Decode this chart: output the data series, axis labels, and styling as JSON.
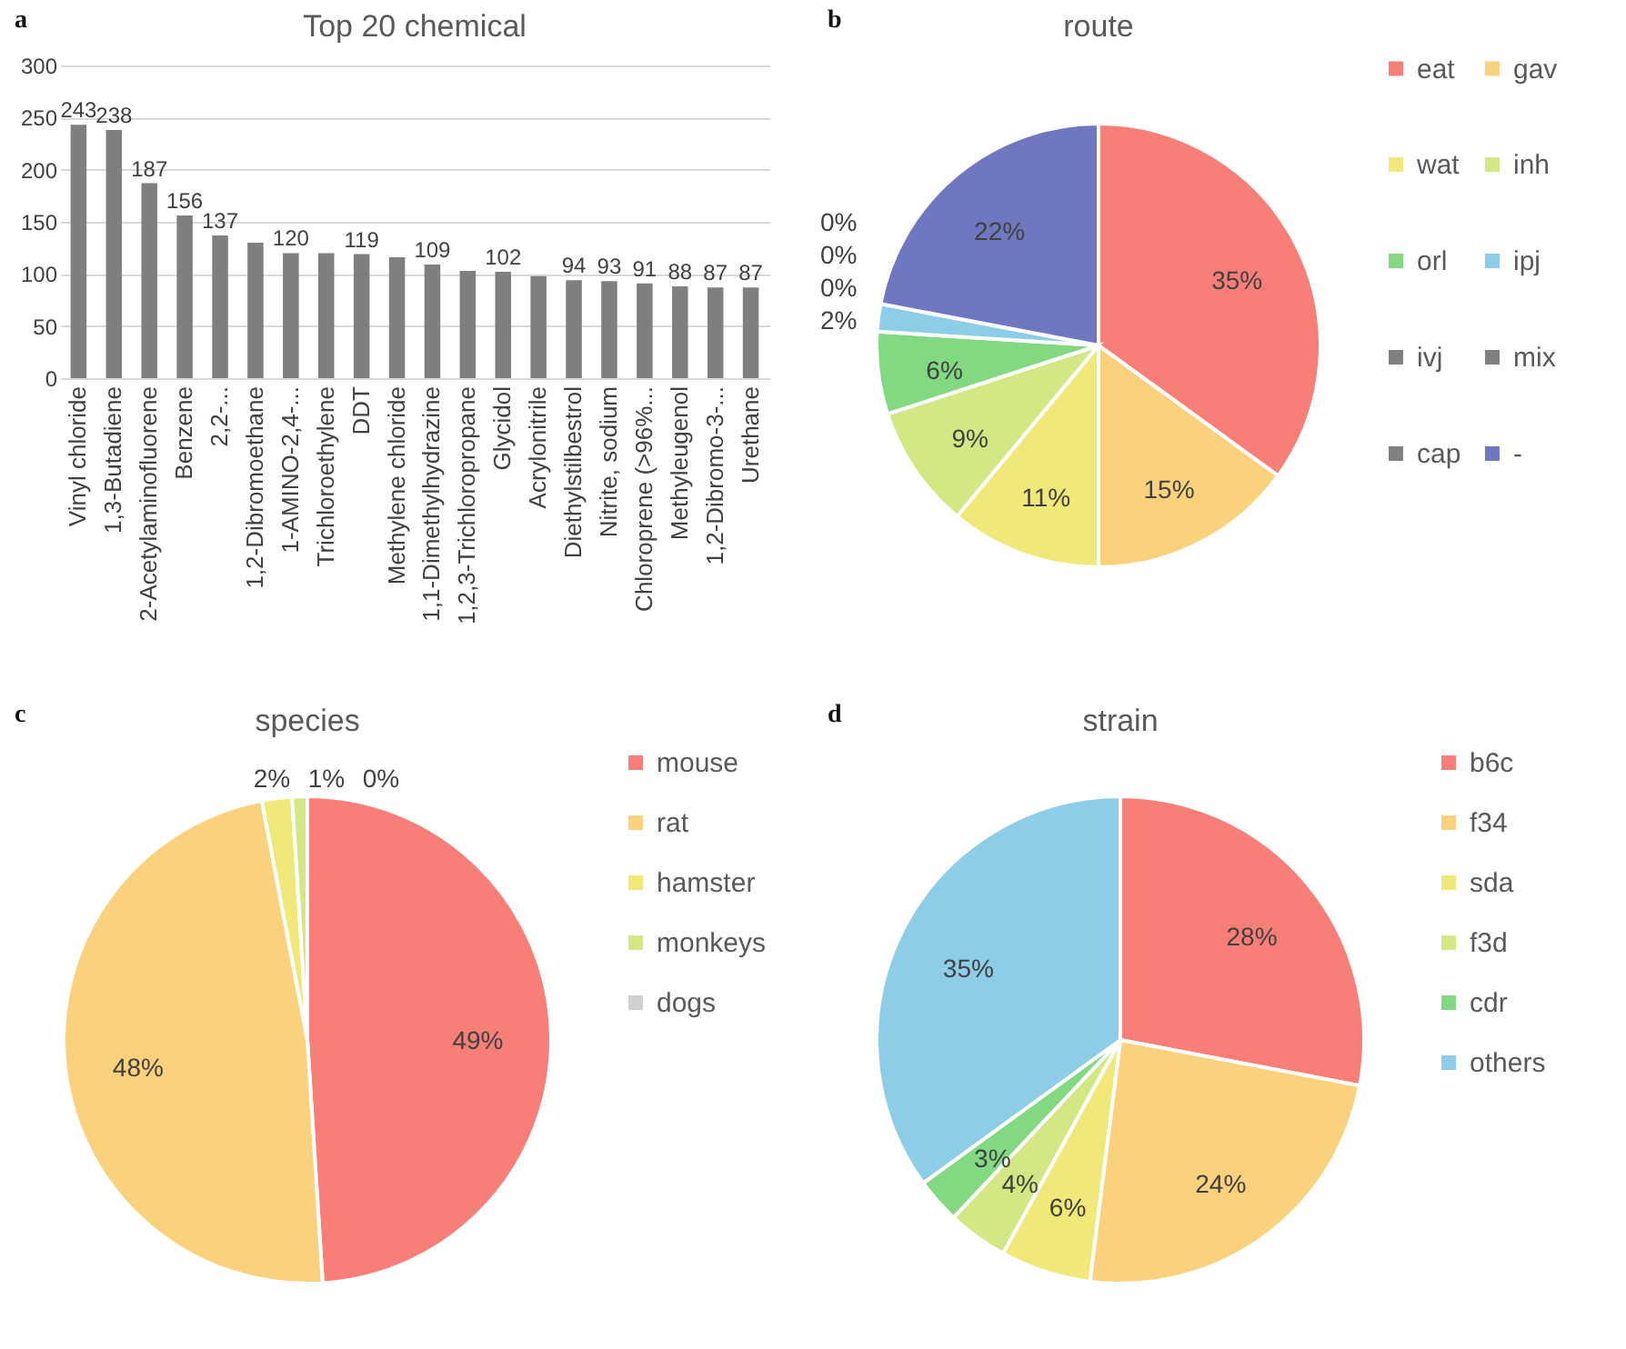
{
  "chart_data": [
    {
      "type": "bar",
      "title": "Top 20 chemical",
      "annotations": [
        "a"
      ],
      "color": "#7f7f7f",
      "grid": "y",
      "ylim": [
        0,
        300
      ],
      "yticks": [
        0,
        50,
        100,
        150,
        200,
        250,
        300
      ],
      "categories": [
        "Vinyl chloride",
        "1,3-Butadiene",
        "2-Acetylaminofluorene",
        "Benzene",
        "2,2-...",
        "1,2-Dibromoethane",
        "1-AMINO-2,4-...",
        "Trichloroethylene",
        "DDT",
        "Methylene chloride",
        "1,1-Dimethylhydrazine",
        "1,2,3-Trichloropropane",
        "Glycidol",
        "Acrylonitrile",
        "Diethylstilbestrol",
        "Nitrite, sodium",
        "Chloroprene (>96%...",
        "Methyleugenol",
        "1,2-Dibromo-3-...",
        "Urethane"
      ],
      "values": [
        243,
        238,
        187,
        156,
        137,
        130,
        120,
        120,
        119,
        116,
        109,
        103,
        102,
        98,
        94,
        93,
        91,
        88,
        87,
        87
      ],
      "value_labels": [
        "243",
        "238",
        "187",
        "156",
        "137",
        null,
        "120",
        null,
        "119",
        null,
        "109",
        null,
        "102",
        null,
        "94",
        "93",
        "91",
        "88",
        "87",
        "87"
      ]
    },
    {
      "type": "pie",
      "title": "route",
      "annotations": [
        "b"
      ],
      "legend": "right",
      "categories": [
        "eat",
        "gav",
        "wat",
        "inh",
        "orl",
        "ipj",
        "ivj",
        "mix",
        "cap",
        "-"
      ],
      "values": [
        35,
        15,
        11,
        9,
        6,
        2,
        0,
        0,
        0,
        22
      ],
      "value_labels": [
        "35%",
        "15%",
        "11%",
        "9%",
        "6%",
        "2%",
        "0%",
        "0%",
        "0%",
        "22%"
      ],
      "colors": [
        "#f77f78",
        "#fad27e",
        "#f0e878",
        "#d3e884",
        "#82d982",
        "#8ccde8",
        "#808080",
        "#808080",
        "#808080",
        "#6f77c0"
      ]
    },
    {
      "type": "pie",
      "title": "species",
      "annotations": [
        "c"
      ],
      "legend": "right",
      "categories": [
        "mouse",
        "rat",
        "hamster",
        "monkeys",
        "dogs"
      ],
      "values": [
        49,
        48,
        2,
        1,
        0
      ],
      "value_labels": [
        "49%",
        "48%",
        "2%",
        "1%",
        "0%"
      ],
      "colors": [
        "#f77f78",
        "#fad27e",
        "#f0e878",
        "#d3e884",
        "#d0d0d0"
      ]
    },
    {
      "type": "pie",
      "title": "strain",
      "annotations": [
        "d"
      ],
      "legend": "right",
      "categories": [
        "b6c",
        "f34",
        "sda",
        "f3d",
        "cdr",
        "others"
      ],
      "values": [
        28,
        24,
        6,
        4,
        3,
        35
      ],
      "value_labels": [
        "28%",
        "24%",
        "6%",
        "4%",
        "3%",
        "35%"
      ],
      "colors": [
        "#f77f78",
        "#fad27e",
        "#f0e878",
        "#d3e884",
        "#82d982",
        "#8ecde8"
      ]
    }
  ]
}
